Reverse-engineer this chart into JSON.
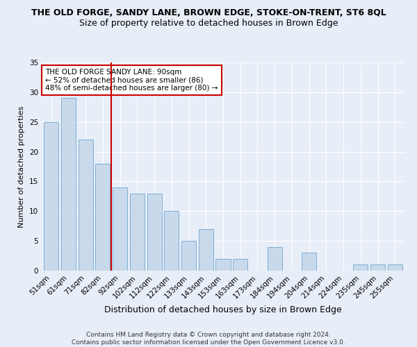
{
  "title": "THE OLD FORGE, SANDY LANE, BROWN EDGE, STOKE-ON-TRENT, ST6 8QL",
  "subtitle": "Size of property relative to detached houses in Brown Edge",
  "xlabel": "Distribution of detached houses by size in Brown Edge",
  "ylabel": "Number of detached properties",
  "categories": [
    "51sqm",
    "61sqm",
    "71sqm",
    "82sqm",
    "92sqm",
    "102sqm",
    "112sqm",
    "122sqm",
    "133sqm",
    "143sqm",
    "153sqm",
    "163sqm",
    "173sqm",
    "184sqm",
    "194sqm",
    "204sqm",
    "214sqm",
    "224sqm",
    "235sqm",
    "245sqm",
    "255sqm"
  ],
  "values": [
    25,
    29,
    22,
    18,
    14,
    13,
    13,
    10,
    5,
    7,
    2,
    2,
    0,
    4,
    0,
    3,
    0,
    0,
    1,
    1,
    1
  ],
  "bar_color": "#c9d9ec",
  "bar_edge_color": "#7bafd4",
  "background_color": "#e8eef8",
  "grid_color": "#ffffff",
  "vline_x_index": 3,
  "vline_color": "#cc0000",
  "annotation_text": "THE OLD FORGE SANDY LANE: 90sqm\n← 52% of detached houses are smaller (86)\n48% of semi-detached houses are larger (80) →",
  "annotation_box_color": "#ffffff",
  "annotation_box_edge": "#cc0000",
  "ylim": [
    0,
    35
  ],
  "yticks": [
    0,
    5,
    10,
    15,
    20,
    25,
    30,
    35
  ],
  "footer": "Contains HM Land Registry data © Crown copyright and database right 2024.\nContains public sector information licensed under the Open Government Licence v3.0.",
  "title_fontsize": 9,
  "subtitle_fontsize": 9,
  "xlabel_fontsize": 9,
  "ylabel_fontsize": 8,
  "tick_fontsize": 7.5,
  "annotation_fontsize": 7.5,
  "footer_fontsize": 6.5
}
